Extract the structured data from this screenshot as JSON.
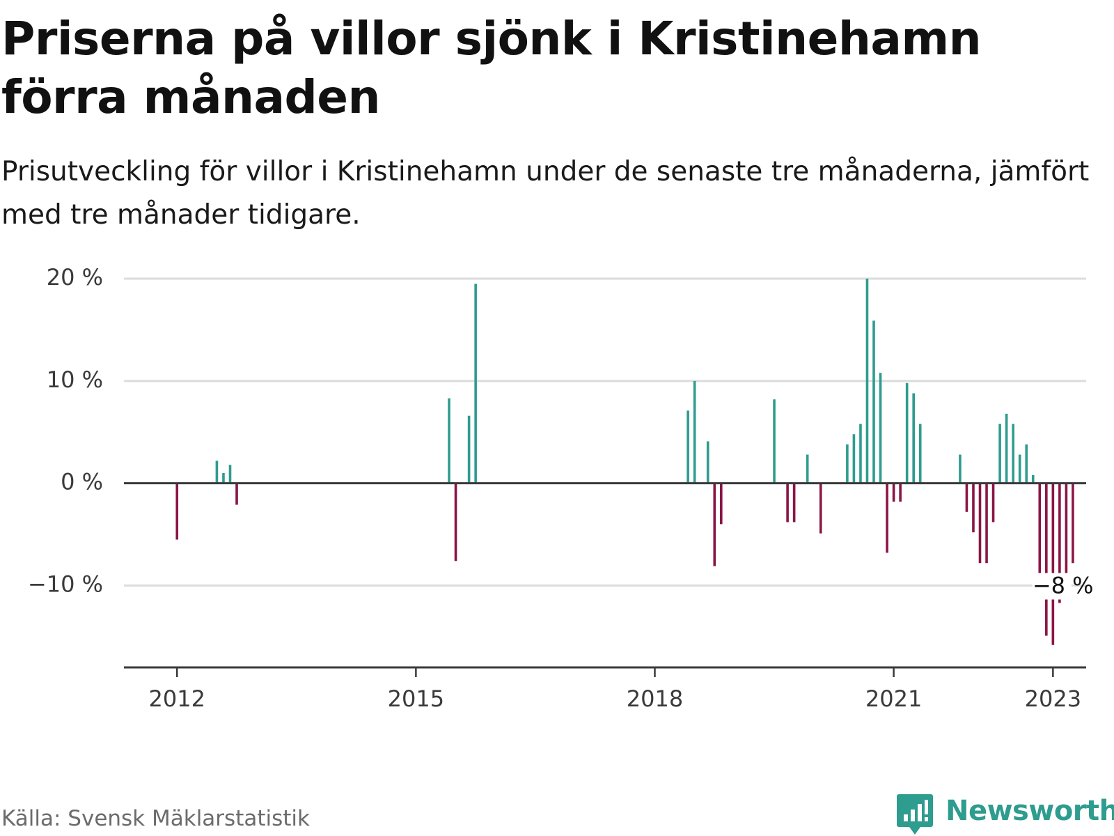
{
  "title": "Priserna på villor sjönk i Kristinehamn förra månaden",
  "subtitle": "Prisutveckling för villor i Kristinehamn under de senaste tre månaderna, jämfört med tre månader tidigare.",
  "source": "Källa: Svensk Mäklarstatistik",
  "brand": "Newsworthy",
  "brand_icon": "newsworthy-logo-icon",
  "colors": {
    "positive": "#2e9c8e",
    "negative": "#8a1546",
    "grid": "#dcdcdc",
    "axis": "#3a3a3a",
    "text": "#121212",
    "muted": "#6b6b6b"
  },
  "chart_data": {
    "type": "bar",
    "title": "",
    "xlabel": "",
    "ylabel": "",
    "unit": "%",
    "ylim": [
      -18,
      20
    ],
    "xlim": [
      "2011-05",
      "2023-06"
    ],
    "yticks": [
      20,
      10,
      0,
      -10
    ],
    "ytick_labels": [
      "20 %",
      "10 %",
      "0 %",
      "−10 %"
    ],
    "xticks": [
      "2012-01",
      "2015-01",
      "2018-01",
      "2021-01",
      "2023-01"
    ],
    "xtick_labels": [
      "2012",
      "2015",
      "2018",
      "2021",
      "2023"
    ],
    "grid": true,
    "legend": "none",
    "annotation": {
      "x": "2022-12",
      "value": -8,
      "label": "−8 %"
    },
    "x": [
      "2012-01",
      "2012-07",
      "2012-08",
      "2012-09",
      "2012-10",
      "2015-06",
      "2015-07",
      "2015-09",
      "2015-10",
      "2018-06",
      "2018-07",
      "2018-09",
      "2018-10",
      "2018-11",
      "2019-07",
      "2019-09",
      "2019-10",
      "2019-12",
      "2020-02",
      "2020-06",
      "2020-07",
      "2020-08",
      "2020-09",
      "2020-10",
      "2020-11",
      "2020-12",
      "2021-01",
      "2021-02",
      "2021-03",
      "2021-04",
      "2021-05",
      "2021-11",
      "2021-12",
      "2022-01",
      "2022-02",
      "2022-03",
      "2022-04",
      "2022-05",
      "2022-06",
      "2022-07",
      "2022-08",
      "2022-09",
      "2022-10",
      "2022-11",
      "2022-12",
      "2023-01",
      "2023-02",
      "2023-03",
      "2023-04"
    ],
    "values": [
      -5.5,
      2.2,
      1,
      1.8,
      -2.1,
      8.3,
      -7.6,
      6.6,
      19.5,
      7.1,
      10,
      4.1,
      -8.1,
      -4,
      8.2,
      -3.8,
      -3.8,
      2.8,
      -4.9,
      3.8,
      4.8,
      5.8,
      20,
      15.9,
      10.8,
      -6.8,
      -1.8,
      -1.8,
      9.8,
      8.8,
      5.8,
      2.8,
      -2.8,
      -4.8,
      -7.8,
      -7.8,
      -3.8,
      5.8,
      6.8,
      5.8,
      2.8,
      3.8,
      0.8,
      -9.5,
      -14.9,
      -15.8,
      -11.7,
      -8.9,
      -7.8
    ]
  }
}
